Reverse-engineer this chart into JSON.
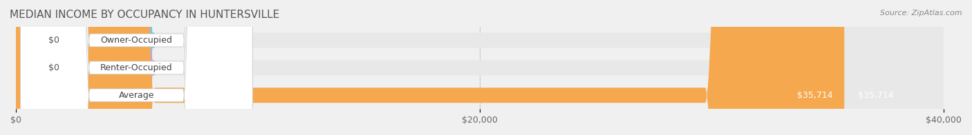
{
  "title": "MEDIAN INCOME BY OCCUPANCY IN HUNTERSVILLE",
  "source": "Source: ZipAtlas.com",
  "categories": [
    "Owner-Occupied",
    "Renter-Occupied",
    "Average"
  ],
  "values": [
    0,
    0,
    35714
  ],
  "bar_colors": [
    "#6ecfcb",
    "#c4a8d4",
    "#f5a84e"
  ],
  "label_colors": [
    "#6ecfcb",
    "#c4a8d4",
    "#f5a84e"
  ],
  "bar_labels": [
    "$0",
    "$0",
    "$35,714"
  ],
  "xlim": [
    0,
    40000
  ],
  "xticks": [
    0,
    20000,
    40000
  ],
  "xtick_labels": [
    "$0",
    "$20,000",
    "$40,000"
  ],
  "background_color": "#f0f0f0",
  "bar_bg_color": "#e8e8e8",
  "title_fontsize": 11,
  "source_fontsize": 8,
  "tick_fontsize": 9,
  "label_fontsize": 9,
  "value_fontsize": 9
}
